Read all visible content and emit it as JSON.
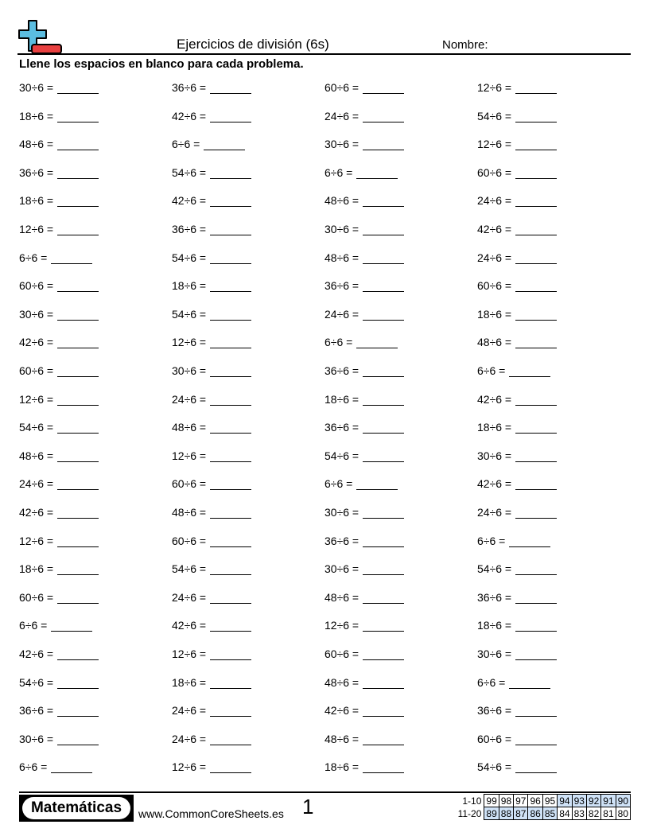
{
  "header": {
    "title": "Ejercicios de división (6s)",
    "name_label": "Nombre:",
    "instructions": "Llene los espacios en blanco para cada problema."
  },
  "logo_colors": {
    "plus": "#5bbde0",
    "minus": "#e84040"
  },
  "problems": [
    [
      "30÷6 =",
      "36÷6 =",
      "60÷6 =",
      "12÷6 ="
    ],
    [
      "18÷6 =",
      "42÷6 =",
      "24÷6 =",
      "54÷6 ="
    ],
    [
      "48÷6 =",
      "6÷6 =",
      "30÷6 =",
      "12÷6 ="
    ],
    [
      "36÷6 =",
      "54÷6 =",
      "6÷6 =",
      "60÷6 ="
    ],
    [
      "18÷6 =",
      "42÷6 =",
      "48÷6 =",
      "24÷6 ="
    ],
    [
      "12÷6 =",
      "36÷6 =",
      "30÷6 =",
      "42÷6 ="
    ],
    [
      "6÷6 =",
      "54÷6 =",
      "48÷6 =",
      "24÷6 ="
    ],
    [
      "60÷6 =",
      "18÷6 =",
      "36÷6 =",
      "60÷6 ="
    ],
    [
      "30÷6 =",
      "54÷6 =",
      "24÷6 =",
      "18÷6 ="
    ],
    [
      "42÷6 =",
      "12÷6 =",
      "6÷6 =",
      "48÷6 ="
    ],
    [
      "60÷6 =",
      "30÷6 =",
      "36÷6 =",
      "6÷6 ="
    ],
    [
      "12÷6 =",
      "24÷6 =",
      "18÷6 =",
      "42÷6 ="
    ],
    [
      "54÷6 =",
      "48÷6 =",
      "36÷6 =",
      "18÷6 ="
    ],
    [
      "48÷6 =",
      "12÷6 =",
      "54÷6 =",
      "30÷6 ="
    ],
    [
      "24÷6 =",
      "60÷6 =",
      "6÷6 =",
      "42÷6 ="
    ],
    [
      "42÷6 =",
      "48÷6 =",
      "30÷6 =",
      "24÷6 ="
    ],
    [
      "12÷6 =",
      "60÷6 =",
      "36÷6 =",
      "6÷6 ="
    ],
    [
      "18÷6 =",
      "54÷6 =",
      "30÷6 =",
      "54÷6 ="
    ],
    [
      "60÷6 =",
      "24÷6 =",
      "48÷6 =",
      "36÷6 ="
    ],
    [
      "6÷6 =",
      "42÷6 =",
      "12÷6 =",
      "18÷6 ="
    ],
    [
      "42÷6 =",
      "12÷6 =",
      "60÷6 =",
      "30÷6 ="
    ],
    [
      "54÷6 =",
      "18÷6 =",
      "48÷6 =",
      "6÷6 ="
    ],
    [
      "36÷6 =",
      "24÷6 =",
      "42÷6 =",
      "36÷6 ="
    ],
    [
      "30÷6 =",
      "24÷6 =",
      "48÷6 =",
      "60÷6 ="
    ],
    [
      "6÷6 =",
      "12÷6 =",
      "18÷6 =",
      "54÷6 ="
    ]
  ],
  "footer": {
    "brand": "Matemáticas",
    "url": "www.CommonCoreSheets.es",
    "page": "1",
    "score_rows": [
      {
        "label": "1-10",
        "values": [
          "99",
          "98",
          "97",
          "96",
          "95",
          "94",
          "93",
          "92",
          "91",
          "90"
        ],
        "highlight": [
          false,
          false,
          false,
          false,
          false,
          true,
          true,
          true,
          true,
          true
        ]
      },
      {
        "label": "11-20",
        "values": [
          "89",
          "88",
          "87",
          "86",
          "85",
          "84",
          "83",
          "82",
          "81",
          "80"
        ],
        "highlight": [
          true,
          true,
          true,
          true,
          true,
          false,
          false,
          false,
          false,
          false
        ]
      }
    ],
    "highlight_color": "#cfe2f7"
  }
}
